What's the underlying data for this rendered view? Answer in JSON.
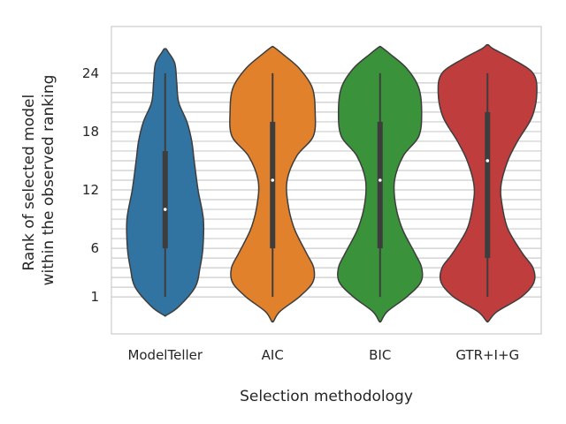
{
  "chart_data": {
    "type": "violin",
    "xlabel": "Selection methodology",
    "ylabel_lines": [
      "Rank of selected model",
      "within the observed ranking"
    ],
    "yticks": [
      1,
      6,
      12,
      18,
      24
    ],
    "ylim": [
      -2.8,
      28.8
    ],
    "grid": "horizontal lines at each integer rank 1–24",
    "categories": [
      "ModelTeller",
      "AIC",
      "BIC",
      "GTR+I+G"
    ],
    "colors": [
      "#3274a1",
      "#e1812c",
      "#3a923a",
      "#c03d3e"
    ],
    "violins": [
      {
        "name": "ModelTeller",
        "median": 10,
        "q1": 6,
        "q3": 16,
        "whisker_low": 1,
        "whisker_high": 24,
        "profile": [
          [
            -0.9,
            0.02
          ],
          [
            0,
            0.28
          ],
          [
            2,
            0.62
          ],
          [
            4,
            0.72
          ],
          [
            6,
            0.78
          ],
          [
            9,
            0.79
          ],
          [
            12,
            0.68
          ],
          [
            15,
            0.6
          ],
          [
            17,
            0.55
          ],
          [
            19,
            0.45
          ],
          [
            21,
            0.28
          ],
          [
            23,
            0.24
          ],
          [
            25,
            0.2
          ],
          [
            26.2,
            0.06
          ],
          [
            26.5,
            0.02
          ]
        ]
      },
      {
        "name": "AIC",
        "median": 13,
        "q1": 6,
        "q3": 19,
        "whisker_low": 1,
        "whisker_high": 24,
        "profile": [
          [
            -1.5,
            0.02
          ],
          [
            -0.5,
            0.15
          ],
          [
            1,
            0.55
          ],
          [
            2.5,
            0.83
          ],
          [
            4,
            0.85
          ],
          [
            5.5,
            0.7
          ],
          [
            8,
            0.45
          ],
          [
            10.5,
            0.32
          ],
          [
            13,
            0.3
          ],
          [
            15.5,
            0.5
          ],
          [
            17.5,
            0.84
          ],
          [
            20,
            0.88
          ],
          [
            22.5,
            0.82
          ],
          [
            24.5,
            0.55
          ],
          [
            26,
            0.2
          ],
          [
            26.7,
            0.02
          ]
        ]
      },
      {
        "name": "BIC",
        "median": 13,
        "q1": 6,
        "q3": 19,
        "whisker_low": 1,
        "whisker_high": 24,
        "profile": [
          [
            -1.5,
            0.02
          ],
          [
            -0.5,
            0.15
          ],
          [
            1,
            0.55
          ],
          [
            2.5,
            0.84
          ],
          [
            4,
            0.86
          ],
          [
            5.5,
            0.72
          ],
          [
            8,
            0.46
          ],
          [
            10.5,
            0.32
          ],
          [
            13,
            0.3
          ],
          [
            15.5,
            0.48
          ],
          [
            17.5,
            0.8
          ],
          [
            20,
            0.86
          ],
          [
            22.5,
            0.8
          ],
          [
            24.5,
            0.55
          ],
          [
            26,
            0.2
          ],
          [
            26.7,
            0.02
          ]
        ]
      },
      {
        "name": "GTR+I+G",
        "median": 15,
        "q1": 5,
        "q3": 20,
        "whisker_low": 1,
        "whisker_high": 24,
        "profile": [
          [
            -1.5,
            0.02
          ],
          [
            -0.5,
            0.2
          ],
          [
            1,
            0.7
          ],
          [
            2.5,
            0.96
          ],
          [
            4,
            0.94
          ],
          [
            5.5,
            0.72
          ],
          [
            8,
            0.42
          ],
          [
            10.5,
            0.3
          ],
          [
            12.5,
            0.28
          ],
          [
            15,
            0.42
          ],
          [
            17,
            0.62
          ],
          [
            19.5,
            0.92
          ],
          [
            22,
            1.02
          ],
          [
            24,
            0.94
          ],
          [
            25.5,
            0.5
          ],
          [
            26.5,
            0.12
          ],
          [
            26.9,
            0.02
          ]
        ]
      }
    ]
  }
}
